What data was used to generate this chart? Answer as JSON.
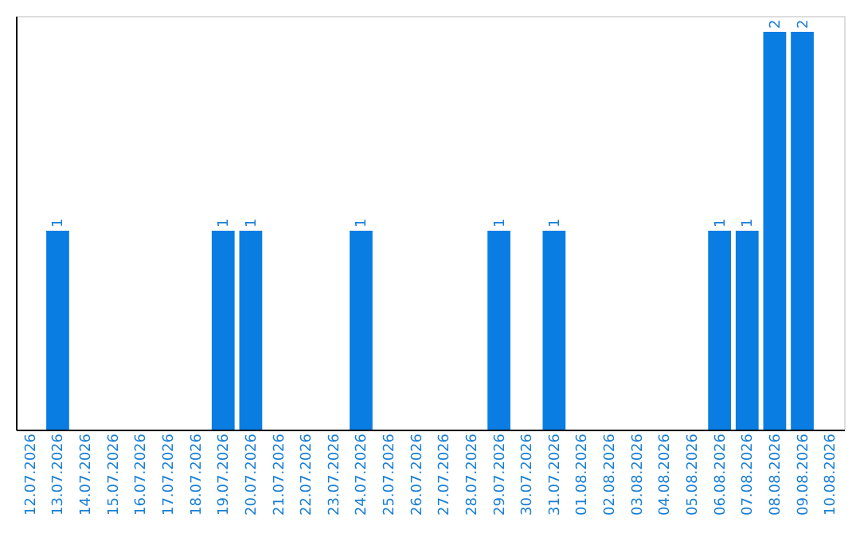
{
  "chart_data": {
    "type": "bar",
    "categories": [
      "12.07.2026",
      "13.07.2026",
      "14.07.2026",
      "15.07.2026",
      "16.07.2026",
      "17.07.2026",
      "18.07.2026",
      "19.07.2026",
      "20.07.2026",
      "21.07.2026",
      "22.07.2026",
      "23.07.2026",
      "24.07.2026",
      "25.07.2026",
      "26.07.2026",
      "27.07.2026",
      "28.07.2026",
      "29.07.2026",
      "30.07.2026",
      "31.07.2026",
      "01.08.2026",
      "02.08.2026",
      "03.08.2026",
      "04.08.2026",
      "05.08.2026",
      "06.08.2026",
      "07.08.2026",
      "08.08.2026",
      "09.08.2026",
      "10.08.2026"
    ],
    "values": [
      0,
      1,
      0,
      0,
      0,
      0,
      0,
      1,
      1,
      0,
      0,
      0,
      1,
      0,
      0,
      0,
      0,
      1,
      0,
      1,
      0,
      0,
      0,
      0,
      0,
      1,
      1,
      2,
      2,
      0
    ],
    "value_labels": [
      null,
      "1",
      null,
      null,
      null,
      null,
      null,
      "1",
      "1",
      null,
      null,
      null,
      "1",
      null,
      null,
      null,
      null,
      "1",
      null,
      "1",
      null,
      null,
      null,
      null,
      null,
      "1",
      "1",
      "2",
      "2",
      null
    ],
    "color": "#0a7de3",
    "ylim": [
      0,
      2.08
    ],
    "tick_labels": "x",
    "grid": false
  }
}
